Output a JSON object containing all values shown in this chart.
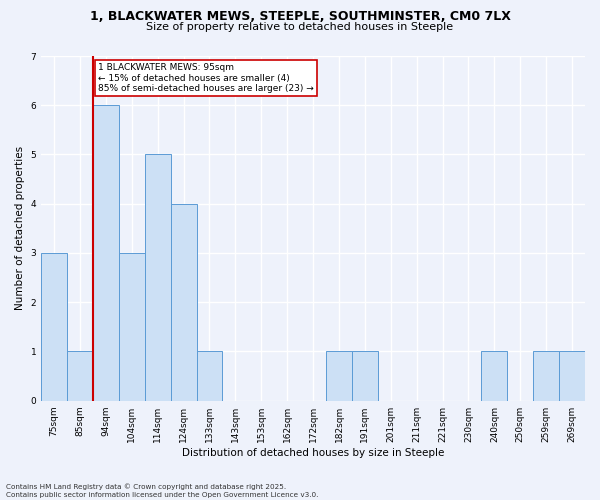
{
  "title_line1": "1, BLACKWATER MEWS, STEEPLE, SOUTHMINSTER, CM0 7LX",
  "title_line2": "Size of property relative to detached houses in Steeple",
  "xlabel": "Distribution of detached houses by size in Steeple",
  "ylabel": "Number of detached properties",
  "footer": "Contains HM Land Registry data © Crown copyright and database right 2025.\nContains public sector information licensed under the Open Government Licence v3.0.",
  "categories": [
    "75sqm",
    "85sqm",
    "94sqm",
    "104sqm",
    "114sqm",
    "124sqm",
    "133sqm",
    "143sqm",
    "153sqm",
    "162sqm",
    "172sqm",
    "182sqm",
    "191sqm",
    "201sqm",
    "211sqm",
    "221sqm",
    "230sqm",
    "240sqm",
    "250sqm",
    "259sqm",
    "269sqm"
  ],
  "values": [
    3,
    1,
    6,
    3,
    5,
    4,
    1,
    0,
    0,
    0,
    0,
    1,
    1,
    0,
    0,
    0,
    0,
    1,
    0,
    1,
    1
  ],
  "bar_color": "#cce0f5",
  "bar_edge_color": "#5b9bd5",
  "subject_line_index": 2,
  "subject_line_color": "#cc0000",
  "annotation_text": "1 BLACKWATER MEWS: 95sqm\n← 15% of detached houses are smaller (4)\n85% of semi-detached houses are larger (23) →",
  "annotation_box_color": "#ffffff",
  "annotation_box_edge": "#cc0000",
  "ylim": [
    0,
    7
  ],
  "yticks": [
    0,
    1,
    2,
    3,
    4,
    5,
    6,
    7
  ],
  "background_color": "#eef2fb",
  "plot_background": "#eef2fb",
  "grid_color": "#ffffff"
}
